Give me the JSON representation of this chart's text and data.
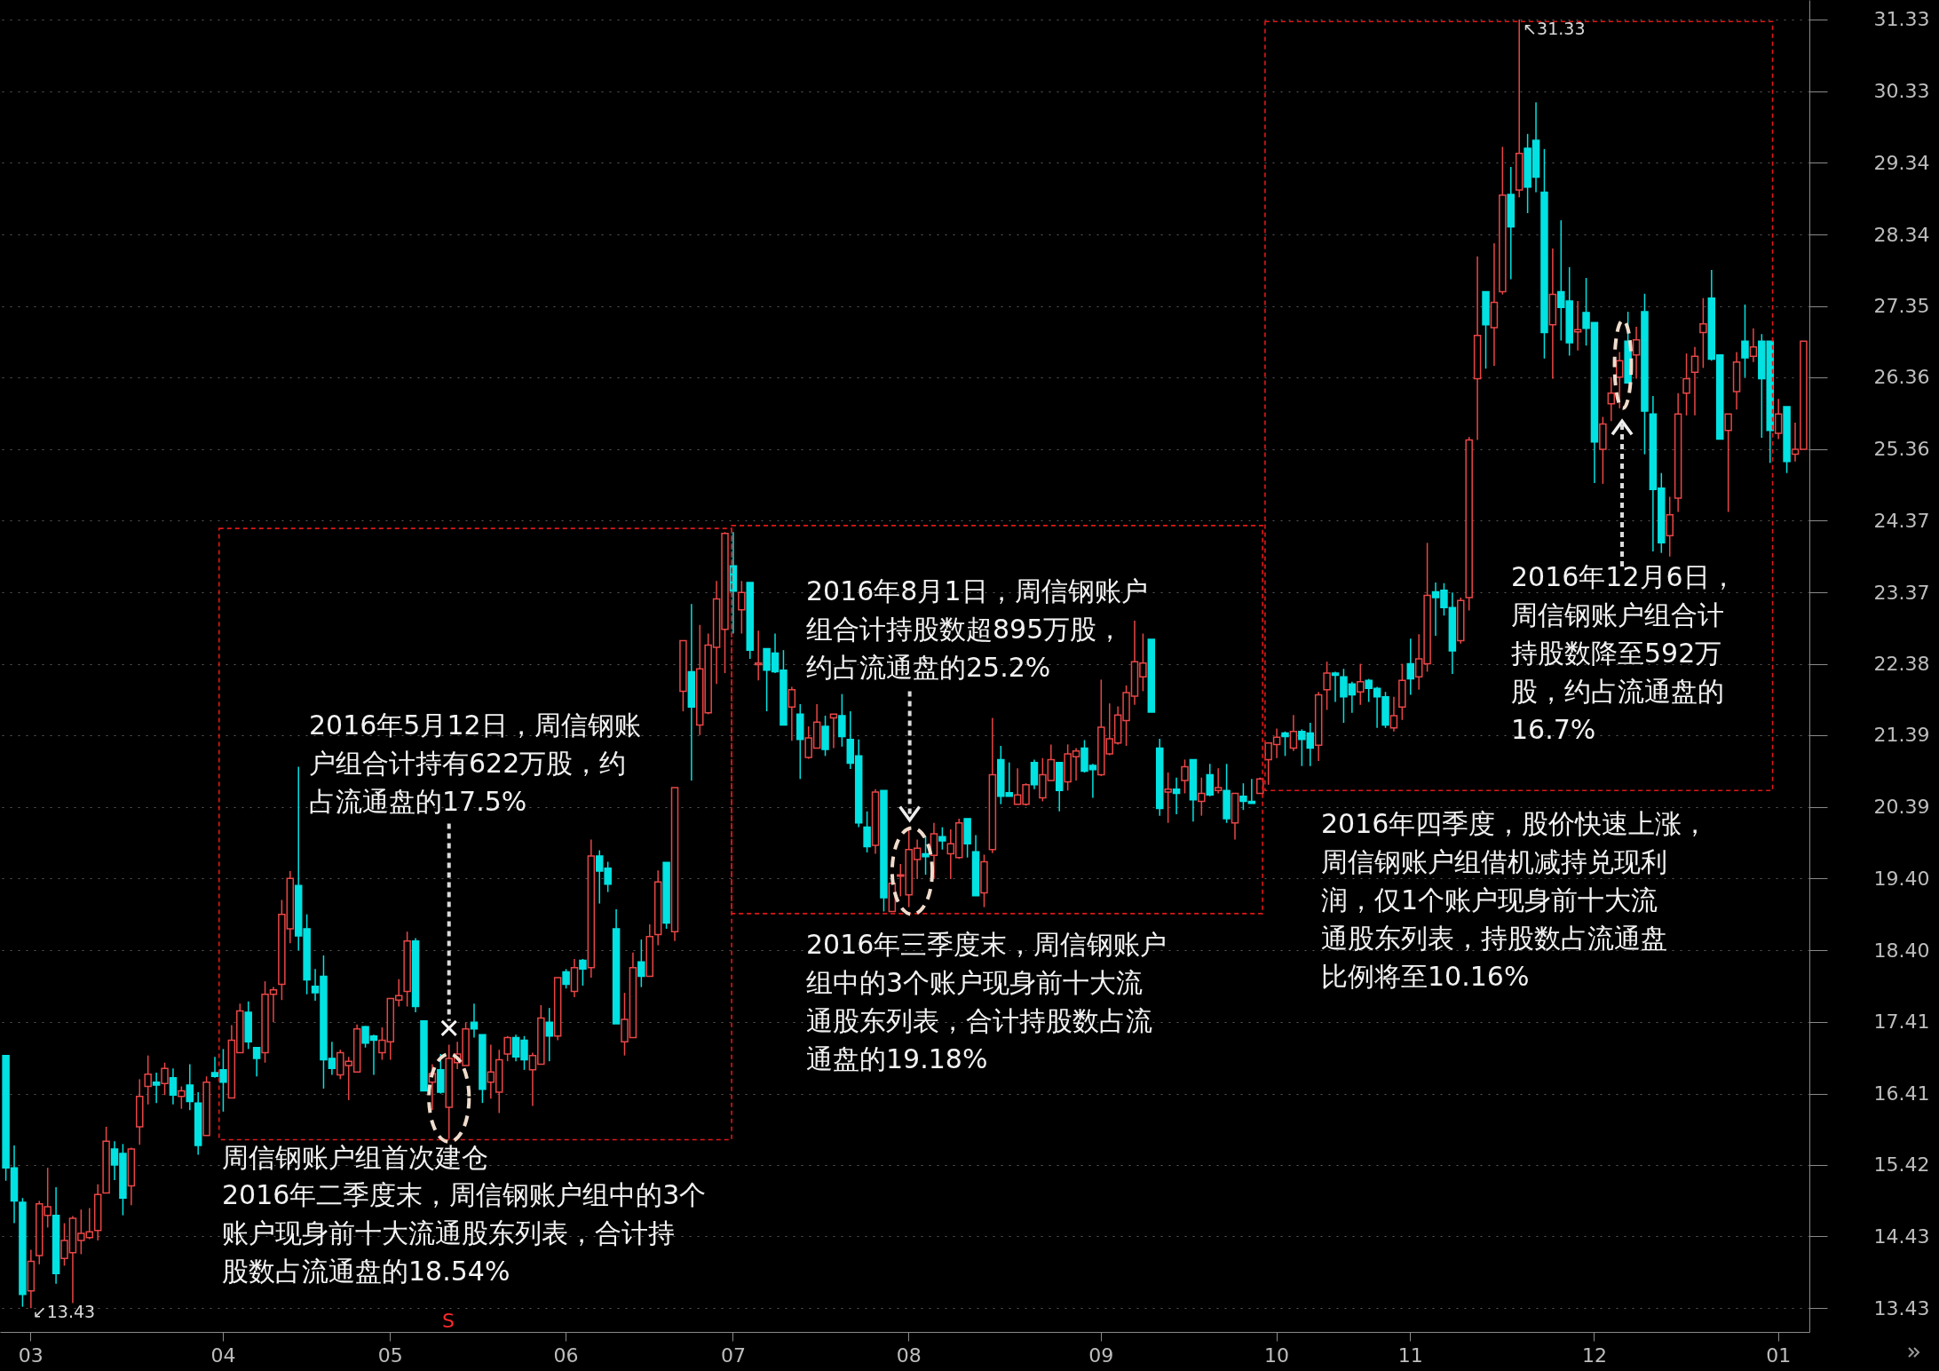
{
  "chart_data": {
    "type": "candlestick",
    "categories": [
      null,
      null,
      null,
      "03",
      null,
      null,
      null,
      null,
      null,
      null,
      null,
      null,
      null,
      null,
      null,
      null,
      null,
      null,
      null,
      null,
      null,
      null,
      null,
      null,
      null,
      null,
      "04",
      null,
      null,
      null,
      null,
      null,
      null,
      null,
      null,
      null,
      null,
      null,
      null,
      null,
      null,
      null,
      null,
      null,
      null,
      null,
      "05",
      null,
      null,
      null,
      null,
      null,
      null,
      null,
      null,
      null,
      null,
      null,
      null,
      null,
      null,
      null,
      null,
      null,
      null,
      null,
      null,
      "06",
      null,
      null,
      null,
      null,
      null,
      null,
      null,
      null,
      null,
      null,
      null,
      null,
      null,
      null,
      null,
      null,
      null,
      null,
      null,
      "07",
      null,
      null,
      null,
      null,
      null,
      null,
      null,
      null,
      null,
      null,
      null,
      null,
      null,
      null,
      null,
      null,
      null,
      null,
      null,
      null,
      "08",
      null,
      null,
      null,
      null,
      null,
      null,
      null,
      null,
      null,
      null,
      null,
      null,
      null,
      null,
      null,
      null,
      null,
      null,
      null,
      null,
      null,
      null,
      "09",
      null,
      null,
      null,
      null,
      null,
      null,
      null,
      null,
      null,
      null,
      null,
      null,
      null,
      null,
      null,
      null,
      null,
      null,
      null,
      null,
      "10",
      null,
      null,
      null,
      null,
      null,
      null,
      null,
      null,
      null,
      null,
      null,
      null,
      null,
      null,
      null,
      "11",
      null,
      null,
      null,
      null,
      null,
      null,
      null,
      null,
      null,
      null,
      null,
      null,
      null,
      null,
      null,
      null,
      null,
      null,
      null,
      null,
      null,
      "12",
      null,
      null,
      null,
      null,
      null,
      null,
      null,
      null,
      null,
      null,
      null,
      null,
      null,
      null,
      null,
      null,
      null,
      null,
      null,
      null,
      null,
      "01",
      null,
      null,
      null
    ],
    "ohlc": [
      [
        16.94,
        16.94,
        15.2,
        15.38
      ],
      [
        15.38,
        15.69,
        14.61,
        14.92
      ],
      [
        14.9,
        14.96,
        13.45,
        13.62
      ],
      [
        13.67,
        14.24,
        13.43,
        14.08
      ],
      [
        14.16,
        14.92,
        14.04,
        14.88
      ],
      [
        14.72,
        15.38,
        14.55,
        14.84
      ],
      [
        14.72,
        15.11,
        13.77,
        13.91
      ],
      [
        14.12,
        14.61,
        14.02,
        14.37
      ],
      [
        14.2,
        14.71,
        13.5,
        14.68
      ],
      [
        14.37,
        14.8,
        14.18,
        14.47
      ],
      [
        14.41,
        14.82,
        14.39,
        14.49
      ],
      [
        14.51,
        15.15,
        14.37,
        15.01
      ],
      [
        15.03,
        15.95,
        15.03,
        15.75
      ],
      [
        15.64,
        15.75,
        15.21,
        15.42
      ],
      [
        15.58,
        15.71,
        14.72,
        14.96
      ],
      [
        15.13,
        15.66,
        14.86,
        15.64
      ],
      [
        15.95,
        16.61,
        15.7,
        16.37
      ],
      [
        16.51,
        16.94,
        16.26,
        16.68
      ],
      [
        16.57,
        16.7,
        16.28,
        16.53
      ],
      [
        16.55,
        16.84,
        16.39,
        16.76
      ],
      [
        16.63,
        16.76,
        16.26,
        16.39
      ],
      [
        16.37,
        16.51,
        16.2,
        16.45
      ],
      [
        16.53,
        16.82,
        16.18,
        16.3
      ],
      [
        16.28,
        16.43,
        15.56,
        15.69
      ],
      [
        15.83,
        16.65,
        15.83,
        16.57
      ],
      [
        16.7,
        16.92,
        16.63,
        16.65
      ],
      [
        16.74,
        17.03,
        16.16,
        16.57
      ],
      [
        16.35,
        17.36,
        16.35,
        17.15
      ],
      [
        16.98,
        17.66,
        16.98,
        17.56
      ],
      [
        17.54,
        17.69,
        17.03,
        17.13
      ],
      [
        17.05,
        17.05,
        16.65,
        16.9
      ],
      [
        16.98,
        17.97,
        16.84,
        17.79
      ],
      [
        17.79,
        17.89,
        17.4,
        17.85
      ],
      [
        17.93,
        19.1,
        17.71,
        18.9
      ],
      [
        18.7,
        19.5,
        18.5,
        19.4
      ],
      [
        19.3,
        20.95,
        18.4,
        18.6
      ],
      [
        18.7,
        18.9,
        17.79,
        17.99
      ],
      [
        17.9,
        18.14,
        17.7,
        17.81
      ],
      [
        18.04,
        18.33,
        16.48,
        16.88
      ],
      [
        16.9,
        17.13,
        16.67,
        16.76
      ],
      [
        16.67,
        17.02,
        16.61,
        16.98
      ],
      [
        16.8,
        16.92,
        16.32,
        16.86
      ],
      [
        16.71,
        17.37,
        16.71,
        17.31
      ],
      [
        17.34,
        17.35,
        17.05,
        17.11
      ],
      [
        17.21,
        17.23,
        16.67,
        17.15
      ],
      [
        16.98,
        17.33,
        16.88,
        17.15
      ],
      [
        17.13,
        17.73,
        16.88,
        17.73
      ],
      [
        17.71,
        18.0,
        17.62,
        17.77
      ],
      [
        17.83,
        18.66,
        17.62,
        18.53
      ],
      [
        18.53,
        18.57,
        17.54,
        17.62
      ],
      [
        17.42,
        17.42,
        16.45,
        16.45
      ],
      [
        16.57,
        16.82,
        16.18,
        16.69
      ],
      [
        16.74,
        16.96,
        16.41,
        16.43
      ],
      [
        16.22,
        17.09,
        15.78,
        16.9
      ],
      [
        16.84,
        17.13,
        16.75,
        16.96
      ],
      [
        16.8,
        17.4,
        16.8,
        17.31
      ],
      [
        17.4,
        17.66,
        17.19,
        17.31
      ],
      [
        17.23,
        17.23,
        16.28,
        16.47
      ],
      [
        16.57,
        17.09,
        16.34,
        16.71
      ],
      [
        16.43,
        17.02,
        16.14,
        16.88
      ],
      [
        16.96,
        17.21,
        16.86,
        17.19
      ],
      [
        17.19,
        17.23,
        16.86,
        16.92
      ],
      [
        17.15,
        17.21,
        16.74,
        16.88
      ],
      [
        16.74,
        16.98,
        16.24,
        16.94
      ],
      [
        16.82,
        17.64,
        16.82,
        17.46
      ],
      [
        17.4,
        17.6,
        16.86,
        17.21
      ],
      [
        17.21,
        18.02,
        17.15,
        18.02
      ],
      [
        18.1,
        18.14,
        17.87,
        17.93
      ],
      [
        17.83,
        18.28,
        17.75,
        18.16
      ],
      [
        18.26,
        18.28,
        17.91,
        18.14
      ],
      [
        18.16,
        19.94,
        18.02,
        19.71
      ],
      [
        19.71,
        19.79,
        19.05,
        19.5
      ],
      [
        19.54,
        19.63,
        19.21,
        19.32
      ],
      [
        18.7,
        18.97,
        17.38,
        17.38
      ],
      [
        17.13,
        17.81,
        16.94,
        17.44
      ],
      [
        17.19,
        18.37,
        17.19,
        18.16
      ],
      [
        18.24,
        18.55,
        17.89,
        18.04
      ],
      [
        18.04,
        18.76,
        18.04,
        18.59
      ],
      [
        18.62,
        19.51,
        18.47,
        19.35
      ],
      [
        19.62,
        19.62,
        18.7,
        18.78
      ],
      [
        18.66,
        20.66,
        18.53,
        20.66
      ],
      [
        22.0,
        22.7,
        21.72,
        22.7
      ],
      [
        22.27,
        23.21,
        20.76,
        21.78
      ],
      [
        21.53,
        22.92,
        21.39,
        22.31
      ],
      [
        21.7,
        22.8,
        21.68,
        22.64
      ],
      [
        22.61,
        23.53,
        22.1,
        23.28
      ],
      [
        22.86,
        24.21,
        22.25,
        24.19
      ],
      [
        23.74,
        24.21,
        22.8,
        23.39
      ],
      [
        23.13,
        23.53,
        22.8,
        23.37
      ],
      [
        23.51,
        23.51,
        22.45,
        22.57
      ],
      [
        22.37,
        22.84,
        22.15,
        22.39
      ],
      [
        22.59,
        22.59,
        21.72,
        22.29
      ],
      [
        22.53,
        22.8,
        22.25,
        22.27
      ],
      [
        22.29,
        22.57,
        21.53,
        21.53
      ],
      [
        21.78,
        22.06,
        21.31,
        22.02
      ],
      [
        21.68,
        21.82,
        20.78,
        21.33
      ],
      [
        21.08,
        21.51,
        21.06,
        21.35
      ],
      [
        21.21,
        21.82,
        21.21,
        21.57
      ],
      [
        21.51,
        21.66,
        21.1,
        21.19
      ],
      [
        21.63,
        21.68,
        21.21,
        21.68
      ],
      [
        21.66,
        21.96,
        21.23,
        21.37
      ],
      [
        21.33,
        21.72,
        20.92,
        21.0
      ],
      [
        21.1,
        21.33,
        20.11,
        20.17
      ],
      [
        20.11,
        20.33,
        19.76,
        19.84
      ],
      [
        19.86,
        20.64,
        19.74,
        20.6
      ],
      [
        20.62,
        20.62,
        18.94,
        19.13
      ],
      [
        18.94,
        19.33,
        18.94,
        19.33
      ],
      [
        19.43,
        19.6,
        19.15,
        19.45
      ],
      [
        19.17,
        20.08,
        19.0,
        19.8
      ],
      [
        19.66,
        19.94,
        19.39,
        19.82
      ],
      [
        19.74,
        19.98,
        19.45,
        19.7
      ],
      [
        19.72,
        20.17,
        19.39,
        20.02
      ],
      [
        19.98,
        20.11,
        19.8,
        19.92
      ],
      [
        19.74,
        20.08,
        19.39,
        19.88
      ],
      [
        19.69,
        20.23,
        19.67,
        20.17
      ],
      [
        20.23,
        20.23,
        19.69,
        19.88
      ],
      [
        19.77,
        20.0,
        19.16,
        19.16
      ],
      [
        19.2,
        19.73,
        19.0,
        19.63
      ],
      [
        19.8,
        21.63,
        19.75,
        20.84
      ],
      [
        21.05,
        21.24,
        20.43,
        20.54
      ],
      [
        20.59,
        21.01,
        20.54,
        20.54
      ],
      [
        20.43,
        20.93,
        20.43,
        20.56
      ],
      [
        20.43,
        20.72,
        20.41,
        20.7
      ],
      [
        21.01,
        21.05,
        20.64,
        20.7
      ],
      [
        20.52,
        21.07,
        20.47,
        20.84
      ],
      [
        20.76,
        21.26,
        20.76,
        21.05
      ],
      [
        21.01,
        21.01,
        20.33,
        20.62
      ],
      [
        20.74,
        21.26,
        20.62,
        21.13
      ],
      [
        21.09,
        21.21,
        20.76,
        21.17
      ],
      [
        21.21,
        21.32,
        20.87,
        20.89
      ],
      [
        20.97,
        20.99,
        20.52,
        20.91
      ],
      [
        20.84,
        22.16,
        20.82,
        21.5
      ],
      [
        21.13,
        21.83,
        21.11,
        21.34
      ],
      [
        21.28,
        21.79,
        21.26,
        21.67
      ],
      [
        21.59,
        22.08,
        21.24,
        21.98
      ],
      [
        21.93,
        22.98,
        21.81,
        22.41
      ],
      [
        22.2,
        22.8,
        22.0,
        22.39
      ],
      [
        22.72,
        22.72,
        21.71,
        21.71
      ],
      [
        21.21,
        21.34,
        20.27,
        20.37
      ],
      [
        20.6,
        20.87,
        20.17,
        20.64
      ],
      [
        20.64,
        20.8,
        20.29,
        20.58
      ],
      [
        20.76,
        21.05,
        20.58,
        20.95
      ],
      [
        21.05,
        21.05,
        20.19,
        20.49
      ],
      [
        20.47,
        20.8,
        20.27,
        20.58
      ],
      [
        20.84,
        20.99,
        20.54,
        20.56
      ],
      [
        20.62,
        20.93,
        20.58,
        20.66
      ],
      [
        20.62,
        20.99,
        20.17,
        20.23
      ],
      [
        20.17,
        20.58,
        19.94,
        20.58
      ],
      [
        20.54,
        20.72,
        20.35,
        20.47
      ],
      [
        20.47,
        20.78,
        20.44,
        20.44
      ],
      [
        20.58,
        20.8,
        20.58,
        20.78
      ],
      [
        21.05,
        21.28,
        20.7,
        21.28
      ],
      [
        21.26,
        21.48,
        21.07,
        21.36
      ],
      [
        21.42,
        21.44,
        21.1,
        21.37
      ],
      [
        21.21,
        21.67,
        21.17,
        21.44
      ],
      [
        21.44,
        21.47,
        20.96,
        21.33
      ],
      [
        21.42,
        21.56,
        20.96,
        21.21
      ],
      [
        21.25,
        21.99,
        21.03,
        21.95
      ],
      [
        22.02,
        22.41,
        21.74,
        22.25
      ],
      [
        22.25,
        22.27,
        21.85,
        22.22
      ],
      [
        22.2,
        22.31,
        21.56,
        21.92
      ],
      [
        22.1,
        22.13,
        21.7,
        21.95
      ],
      [
        21.99,
        22.38,
        21.81,
        22.13
      ],
      [
        22.15,
        22.17,
        21.85,
        22.04
      ],
      [
        22.04,
        22.06,
        21.49,
        21.92
      ],
      [
        21.92,
        21.99,
        21.49,
        21.53
      ],
      [
        21.49,
        21.92,
        21.44,
        21.66
      ],
      [
        21.78,
        22.38,
        21.6,
        22.15
      ],
      [
        22.38,
        22.73,
        21.95,
        22.17
      ],
      [
        22.2,
        22.79,
        22.02,
        22.45
      ],
      [
        22.38,
        24.06,
        22.27,
        23.33
      ],
      [
        23.38,
        23.51,
        22.77,
        23.3
      ],
      [
        23.4,
        23.5,
        23.05,
        23.16
      ],
      [
        23.16,
        23.37,
        22.24,
        22.56
      ],
      [
        22.7,
        23.3,
        22.66,
        23.26
      ],
      [
        23.3,
        25.53,
        23.12,
        25.49
      ],
      [
        26.34,
        28.04,
        25.49,
        26.94
      ],
      [
        27.55,
        27.55,
        26.48,
        27.09
      ],
      [
        27.05,
        28.22,
        26.52,
        27.4
      ],
      [
        27.55,
        29.56,
        27.51,
        28.89
      ],
      [
        28.9,
        29.28,
        27.72,
        28.45
      ],
      [
        28.96,
        31.33,
        28.86,
        29.47
      ],
      [
        29.54,
        29.74,
        28.64,
        29.0
      ],
      [
        29.65,
        30.18,
        28.93,
        29.14
      ],
      [
        28.93,
        29.53,
        26.62,
        26.98
      ],
      [
        27.09,
        28.15,
        26.34,
        27.51
      ],
      [
        27.55,
        28.54,
        26.87,
        27.33
      ],
      [
        27.42,
        27.89,
        26.66,
        26.84
      ],
      [
        26.99,
        27.42,
        26.73,
        27.02
      ],
      [
        27.26,
        27.74,
        26.8,
        27.04
      ],
      [
        27.12,
        27.12,
        24.89,
        25.46
      ],
      [
        25.36,
        25.81,
        24.88,
        25.71
      ],
      [
        25.99,
        26.36,
        25.75,
        26.14
      ],
      [
        26.36,
        26.71,
        25.93,
        26.59
      ],
      [
        26.86,
        27.27,
        26.28,
        26.28
      ],
      [
        26.67,
        27.06,
        26.34,
        26.88
      ],
      [
        27.27,
        27.52,
        25.29,
        25.89
      ],
      [
        25.85,
        26.1,
        23.94,
        24.8
      ],
      [
        24.82,
        25.03,
        23.92,
        24.06
      ],
      [
        24.16,
        24.7,
        23.87,
        24.45
      ],
      [
        24.68,
        26.14,
        24.49,
        25.85
      ],
      [
        26.14,
        26.69,
        25.83,
        26.34
      ],
      [
        26.43,
        26.78,
        25.83,
        26.65
      ],
      [
        26.98,
        27.46,
        26.49,
        27.1
      ],
      [
        27.46,
        27.85,
        26.59,
        26.61
      ],
      [
        26.67,
        26.67,
        25.5,
        25.5
      ],
      [
        25.62,
        25.85,
        24.49,
        25.85
      ],
      [
        26.16,
        26.71,
        25.91,
        26.57
      ],
      [
        26.86,
        27.37,
        26.36,
        26.63
      ],
      [
        26.65,
        27.04,
        26.57,
        26.78
      ],
      [
        26.86,
        26.96,
        25.52,
        26.34
      ],
      [
        26.86,
        26.86,
        25.17,
        25.62
      ],
      [
        25.58,
        26.06,
        25.5,
        25.85
      ],
      [
        25.95,
        25.95,
        25.03,
        25.19
      ],
      [
        25.29,
        25.73,
        25.19,
        25.36
      ],
      [
        25.36,
        26.86,
        25.36,
        26.86
      ]
    ],
    "colors": [
      "#02e2e2",
      "#02e2e2",
      "#02e2e2",
      "#e84646",
      "#e84646",
      "#e84646",
      "#02e2e2",
      "#e84646",
      "#e84646",
      "#e84646",
      "#e84646",
      "#e84646",
      "#e84646",
      "#02e2e2",
      "#02e2e2",
      "#e84646",
      "#e84646",
      "#e84646",
      "#02e2e2",
      "#e84646",
      "#02e2e2",
      "#e84646",
      "#02e2e2",
      "#02e2e2",
      "#e84646",
      "#02e2e2",
      "#02e2e2",
      "#e84646",
      "#e84646",
      "#02e2e2",
      "#02e2e2",
      "#e84646",
      "#e84646",
      "#e84646",
      "#e84646",
      "#02e2e2",
      "#02e2e2",
      "#02e2e2",
      "#02e2e2",
      "#02e2e2",
      "#e84646",
      "#e84646",
      "#e84646",
      "#02e2e2",
      "#02e2e2",
      "#e84646",
      "#e84646",
      "#e84646",
      "#e84646",
      "#02e2e2",
      "#02e2e2",
      "#e84646",
      "#02e2e2",
      "#e84646",
      "#e84646",
      "#e84646",
      "#02e2e2",
      "#02e2e2",
      "#e84646",
      "#e84646",
      "#e84646",
      "#02e2e2",
      "#02e2e2",
      "#e84646",
      "#e84646",
      "#02e2e2",
      "#e84646",
      "#02e2e2",
      "#e84646",
      "#02e2e2",
      "#e84646",
      "#02e2e2",
      "#02e2e2",
      "#02e2e2",
      "#e84646",
      "#e84646",
      "#02e2e2",
      "#e84646",
      "#e84646",
      "#02e2e2",
      "#e84646",
      "#e84646",
      "#02e2e2",
      "#e84646",
      "#e84646",
      "#e84646",
      "#e84646",
      "#02e2e2",
      "#e84646",
      "#02e2e2",
      "#e84646",
      "#02e2e2",
      "#02e2e2",
      "#02e2e2",
      "#e84646",
      "#02e2e2",
      "#e84646",
      "#e84646",
      "#02e2e2",
      "#e84646",
      "#02e2e2",
      "#02e2e2",
      "#02e2e2",
      "#02e2e2",
      "#e84646",
      "#02e2e2",
      "#e84646",
      "#e84646",
      "#e84646",
      "#e84646",
      "#02e2e2",
      "#e84646",
      "#02e2e2",
      "#e84646",
      "#e84646",
      "#02e2e2",
      "#02e2e2",
      "#e84646",
      "#e84646",
      "#02e2e2",
      "#02e2e2",
      "#e84646",
      "#e84646",
      "#02e2e2",
      "#e84646",
      "#e84646",
      "#02e2e2",
      "#e84646",
      "#e84646",
      "#02e2e2",
      "#02e2e2",
      "#e84646",
      "#e84646",
      "#e84646",
      "#e84646",
      "#e84646",
      "#e84646",
      "#02e2e2",
      "#02e2e2",
      "#e84646",
      "#02e2e2",
      "#e84646",
      "#02e2e2",
      "#e84646",
      "#02e2e2",
      "#e84646",
      "#02e2e2",
      "#e84646",
      "#02e2e2",
      "#02e2e2",
      "#e84646",
      "#e84646",
      "#e84646",
      "#02e2e2",
      "#e84646",
      "#02e2e2",
      "#02e2e2",
      "#e84646",
      "#e84646",
      "#02e2e2",
      "#02e2e2",
      "#02e2e2",
      "#e84646",
      "#02e2e2",
      "#02e2e2",
      "#02e2e2",
      "#e84646",
      "#e84646",
      "#02e2e2",
      "#e84646",
      "#e84646",
      "#02e2e2",
      "#02e2e2",
      "#02e2e2",
      "#e84646",
      "#e84646",
      "#e84646",
      "#02e2e2",
      "#e84646",
      "#e84646",
      "#02e2e2",
      "#e84646",
      "#02e2e2",
      "#02e2e2",
      "#02e2e2",
      "#e84646",
      "#02e2e2",
      "#02e2e2",
      "#e84646",
      "#02e2e2",
      "#02e2e2",
      "#e84646",
      "#e84646",
      "#e84646",
      "#02e2e2",
      "#e84646",
      "#02e2e2",
      "#02e2e2",
      "#02e2e2",
      "#e84646",
      "#e84646",
      "#e84646",
      "#e84646",
      "#e84646",
      "#02e2e2",
      "#02e2e2",
      "#e84646",
      "#e84646",
      "#02e2e2",
      "#e84646",
      "#02e2e2",
      "#02e2e2",
      "#e84646",
      "#02e2e2",
      "#e84646",
      "#e84646"
    ],
    "ylim": [
      13.1,
      31.6
    ],
    "yticks": [
      13.43,
      14.43,
      15.42,
      16.41,
      17.41,
      {
        "value": 18.4,
        "label": "18.40"
      },
      {
        "value": 19.4,
        "label": "19.40"
      },
      20.39,
      21.39,
      22.38,
      23.37,
      24.37,
      25.36,
      26.36,
      27.35,
      28.34,
      29.34,
      30.33,
      31.33
    ],
    "grid": "y",
    "annotations": [
      "2016年5月12日，周信钢账户组合计持有622万股，约占流通盘的17.5%",
      "周信钢账户组首次建仓",
      "2016年二季度末，周信钢账户组中的3个账户现身前十大流通股东列表，合计持股数占流通盘的18.54%",
      "2016年8月1日，周信钢账户组合计持股数超895万股，约占流通盘的25.2%",
      "2016年三季度末，周信钢账户组中的3个账户现身前十大流通股东列表，合计持股数占流通盘的19.18%",
      "2016年四季度，股价快速上涨，周信钢账户组借机减持兑现利润，仅1个账户现身前十大流通股东列表，持股数占流通盘比例将至10.16%",
      "2016年12月6日，周信钢账户组合计持股数降至592万股，约占流通盘的16.7%",
      "↖31.33",
      "↙13.43",
      "S"
    ]
  }
}
